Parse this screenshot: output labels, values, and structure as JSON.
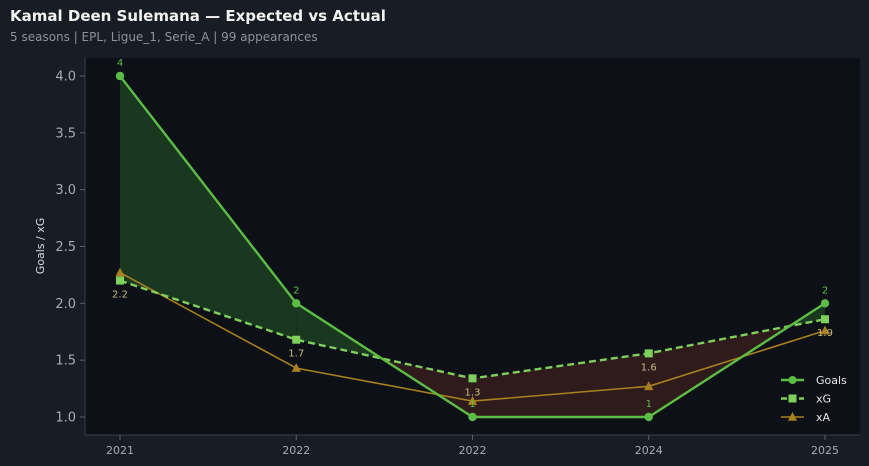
{
  "header": {
    "title": "Kamal Deen Sulemana — Expected vs Actual",
    "subtitle": "5 seasons | EPL, Ligue_1, Serie_A | 99 appearances"
  },
  "chart_data": {
    "type": "line",
    "title": "Kamal Deen Sulemana — Expected vs Actual",
    "subtitle": "5 seasons | EPL, Ligue_1, Serie_A | 99 appearances",
    "xlabel": "",
    "ylabel": "Goals / xG",
    "categories": [
      "2021",
      "2022",
      "2022",
      "2024",
      "2025"
    ],
    "ylim": [
      0.9,
      4.14
    ],
    "yticks": [
      1.0,
      1.5,
      2.0,
      2.5,
      3.0,
      3.5,
      4.0
    ],
    "ytick_labels": [
      "1.0",
      "1.5",
      "2.0",
      "2.5",
      "3.0",
      "3.5",
      "4.0"
    ],
    "grid": false,
    "legend_position": "bottom-right",
    "series": [
      {
        "name": "Goals",
        "values": [
          4,
          2,
          1,
          1,
          2
        ],
        "labels": [
          "4",
          "2",
          "1",
          "1",
          "2"
        ],
        "color": "#5cbd45",
        "marker": "circle",
        "line_style": "solid"
      },
      {
        "name": "xG",
        "values": [
          2.2,
          1.68,
          1.34,
          1.56,
          1.86
        ],
        "labels": [
          "2.2",
          "1.7",
          "1.3",
          "1.6",
          "1.9"
        ],
        "color": "#7ecf5b",
        "marker": "square",
        "line_style": "dashed"
      },
      {
        "name": "xA",
        "values": [
          2.27,
          1.43,
          1.14,
          1.27,
          1.76
        ],
        "color": "#a8801f",
        "marker": "triangle",
        "line_style": "solid"
      }
    ],
    "fill": {
      "over_color": "#1f4424",
      "under_color": "#3a1e1e"
    }
  }
}
